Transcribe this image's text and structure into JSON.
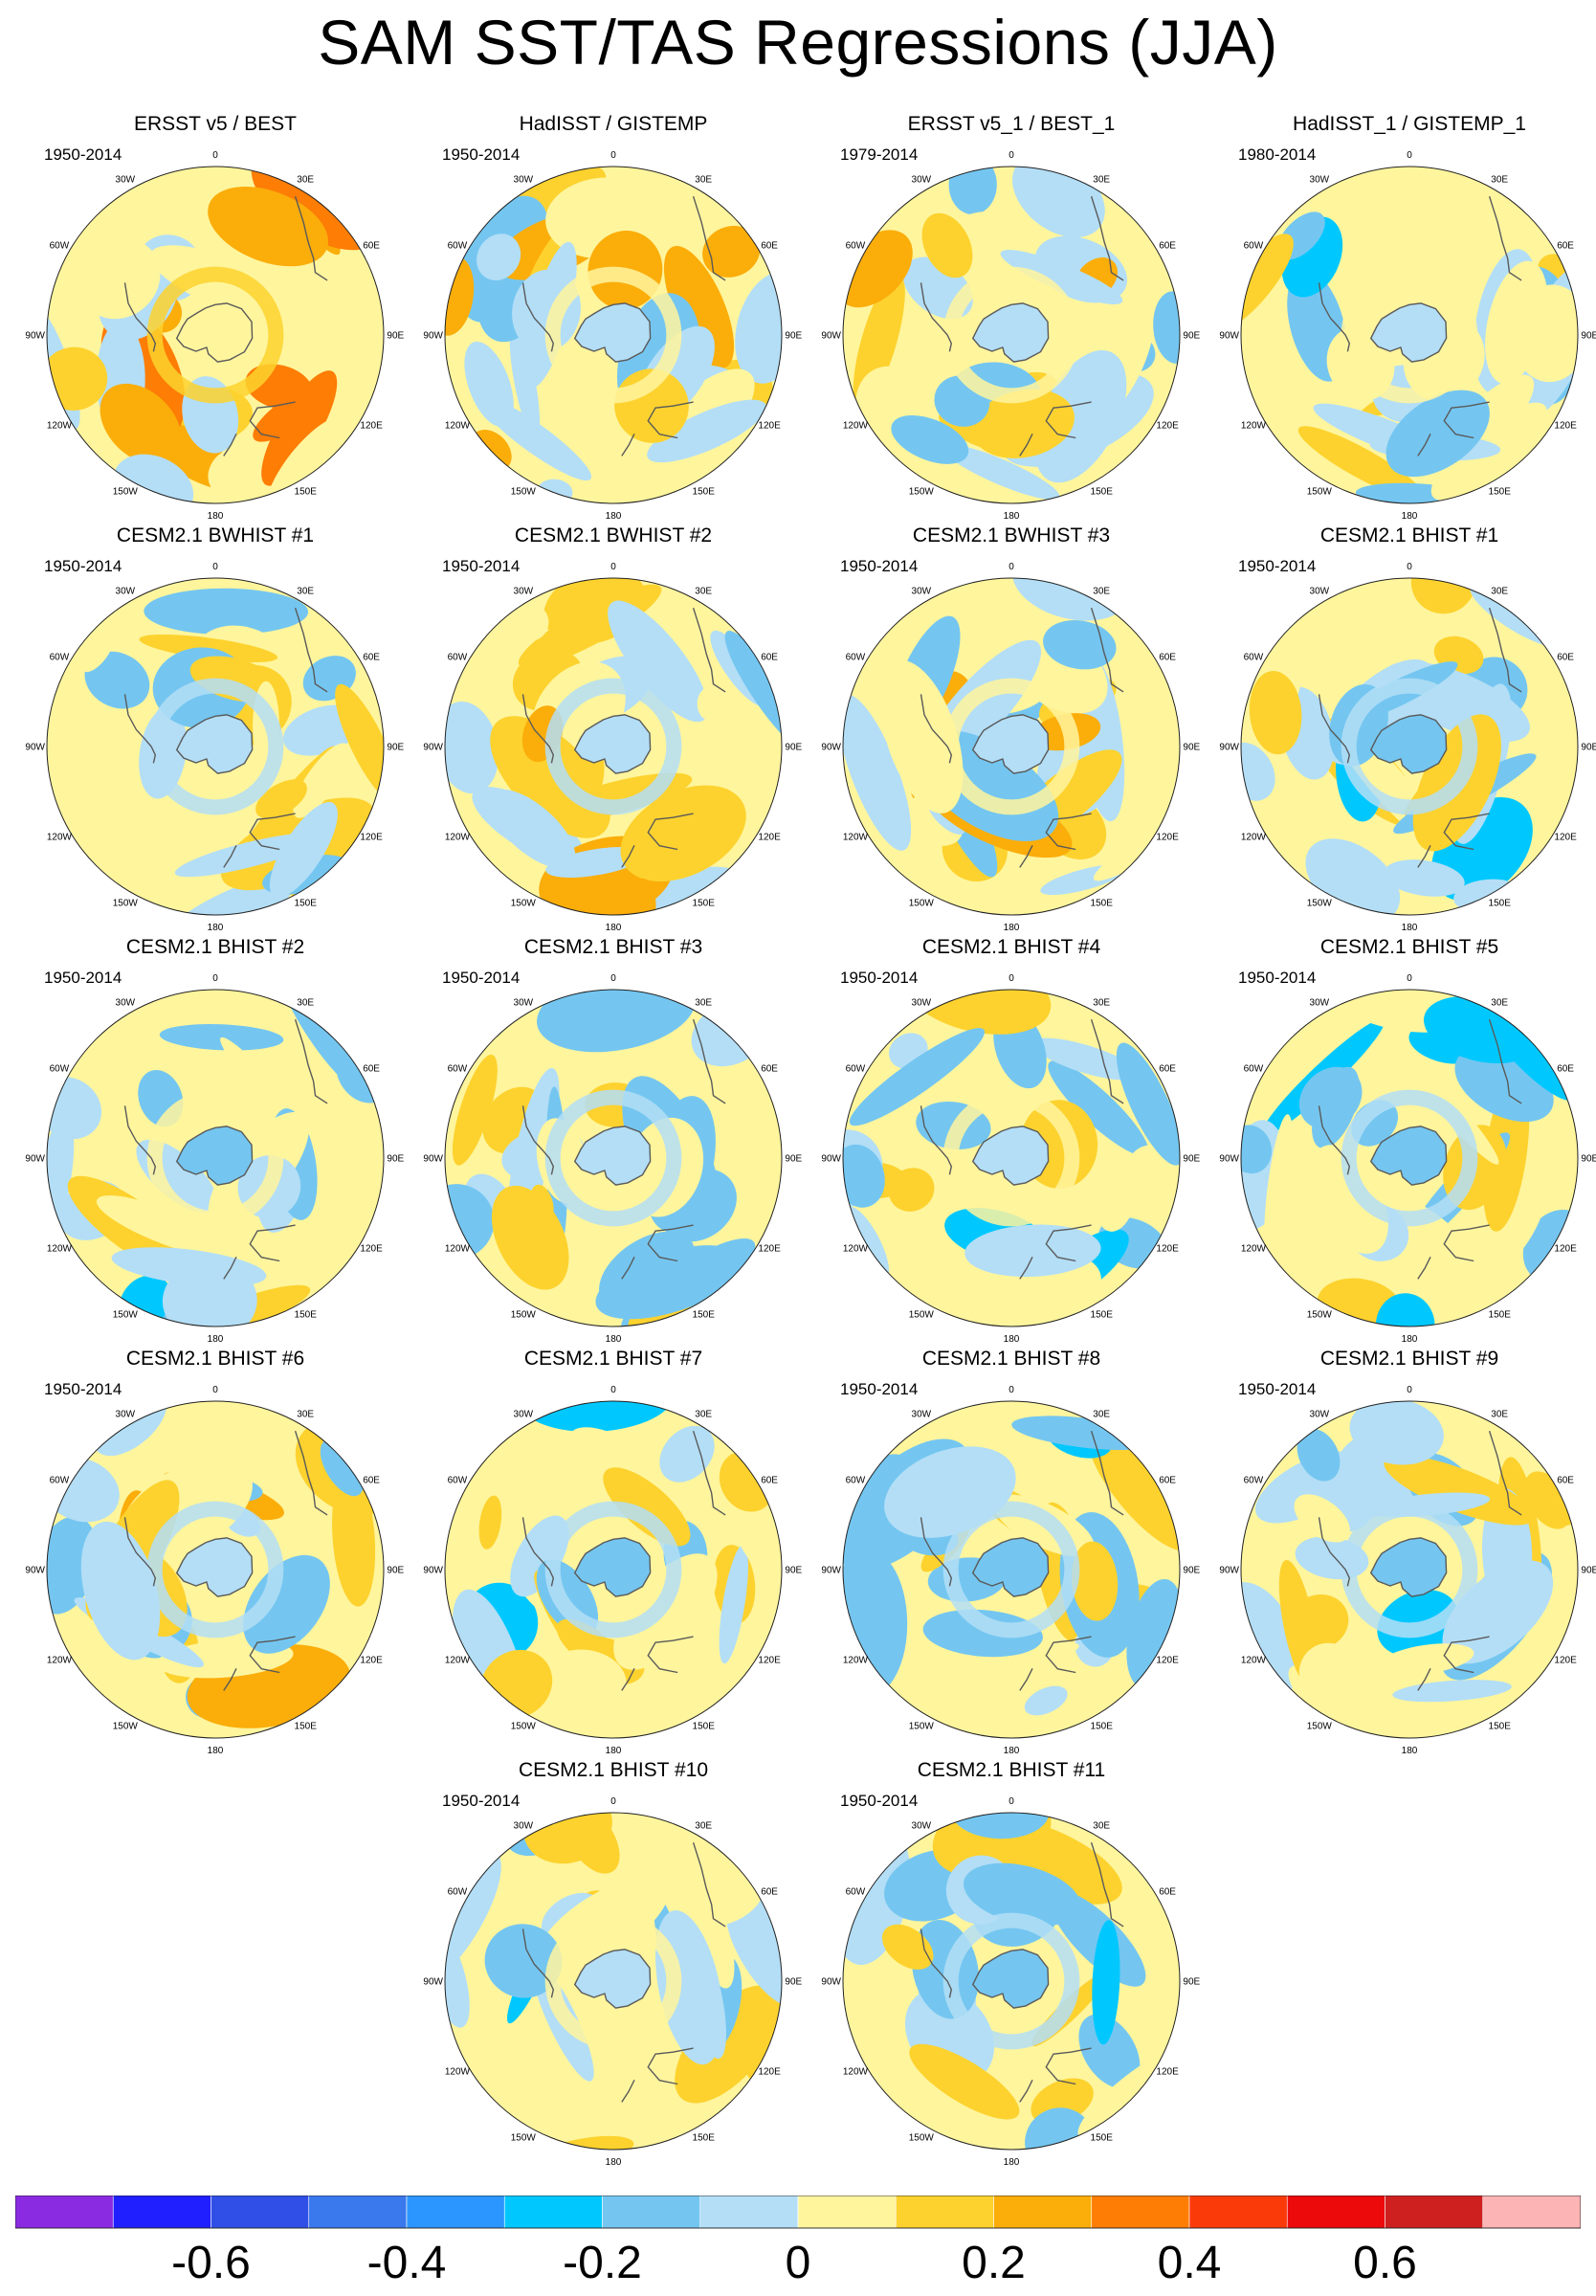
{
  "title": "SAM SST/TAS Regressions (JJA)",
  "colors": {
    "ocean_base": "#fff59d",
    "coast": "#5a5a5a",
    "frame": "#222222",
    "scale": [
      "#8a2be2",
      "#1f1fff",
      "#2f4fe6",
      "#3a78ee",
      "#2b96ff",
      "#00c8ff",
      "#74c6f0",
      "#b3def6",
      "#fff59d",
      "#fdd22e",
      "#fbad0a",
      "#fd7d05",
      "#fb3a09",
      "#ec0a0a",
      "#cf2020",
      "#fdb4b4"
    ]
  },
  "lon_labels": [
    "0",
    "30E",
    "60E",
    "90E",
    "120E",
    "150E",
    "180",
    "150W",
    "120W",
    "90W",
    "60W",
    "30W"
  ],
  "colorbar": {
    "tick_labels": [
      "-0.6",
      "-0.4",
      "-0.2",
      "0",
      "0.2",
      "0.4",
      "0.6"
    ]
  },
  "chart_data": [
    {
      "type": "polar-contour",
      "title": "ERSST v5 / BEST",
      "years": "1950-2014",
      "field": {
        "mean": 0.14,
        "seed": 11
      }
    },
    {
      "type": "polar-contour",
      "title": "HadISST / GISTEMP",
      "years": "1950-2014",
      "field": {
        "mean": 0.06,
        "seed": 23
      }
    },
    {
      "type": "polar-contour",
      "title": "ERSST v5_1 / BEST_1",
      "years": "1979-2014",
      "field": {
        "mean": 0.01,
        "seed": 37
      }
    },
    {
      "type": "polar-contour",
      "title": "HadISST_1 / GISTEMP_1",
      "years": "1980-2014",
      "field": {
        "mean": 0.0,
        "seed": 41
      }
    },
    {
      "type": "polar-contour",
      "title": "CESM2.1 BWHIST #1",
      "years": "1950-2014",
      "field": {
        "mean": 0.0,
        "seed": 53
      }
    },
    {
      "type": "polar-contour",
      "title": "CESM2.1 BWHIST #2",
      "years": "1950-2014",
      "field": {
        "mean": 0.02,
        "seed": 61
      }
    },
    {
      "type": "polar-contour",
      "title": "CESM2.1 BWHIST #3",
      "years": "1950-2014",
      "field": {
        "mean": 0.04,
        "seed": 71
      }
    },
    {
      "type": "polar-contour",
      "title": "CESM2.1 BHIST #1",
      "years": "1950-2014",
      "field": {
        "mean": -0.03,
        "seed": 83
      }
    },
    {
      "type": "polar-contour",
      "title": "CESM2.1 BHIST #2",
      "years": "1950-2014",
      "field": {
        "mean": -0.01,
        "seed": 97
      }
    },
    {
      "type": "polar-contour",
      "title": "CESM2.1 BHIST #3",
      "years": "1950-2014",
      "field": {
        "mean": 0.01,
        "seed": 103
      }
    },
    {
      "type": "polar-contour",
      "title": "CESM2.1 BHIST #4",
      "years": "1950-2014",
      "field": {
        "mean": 0.0,
        "seed": 113
      }
    },
    {
      "type": "polar-contour",
      "title": "CESM2.1 BHIST #5",
      "years": "1950-2014",
      "field": {
        "mean": -0.04,
        "seed": 127
      }
    },
    {
      "type": "polar-contour",
      "title": "CESM2.1 BHIST #6",
      "years": "1950-2014",
      "field": {
        "mean": 0.02,
        "seed": 131
      }
    },
    {
      "type": "polar-contour",
      "title": "CESM2.1 BHIST #7",
      "years": "",
      "field": {
        "mean": -0.01,
        "seed": 139
      }
    },
    {
      "type": "polar-contour",
      "title": "CESM2.1 BHIST #8",
      "years": "1950-2014",
      "field": {
        "mean": -0.01,
        "seed": 149
      }
    },
    {
      "type": "polar-contour",
      "title": "CESM2.1 BHIST #9",
      "years": "1950-2014",
      "field": {
        "mean": -0.02,
        "seed": 157
      }
    },
    {
      "type": "polar-contour",
      "title": "CESM2.1 BHIST #10",
      "years": "1950-2014",
      "field": {
        "mean": 0.0,
        "seed": 163
      }
    },
    {
      "type": "polar-contour",
      "title": "CESM2.1 BHIST #11",
      "years": "1950-2014",
      "field": {
        "mean": -0.01,
        "seed": 173
      }
    }
  ]
}
